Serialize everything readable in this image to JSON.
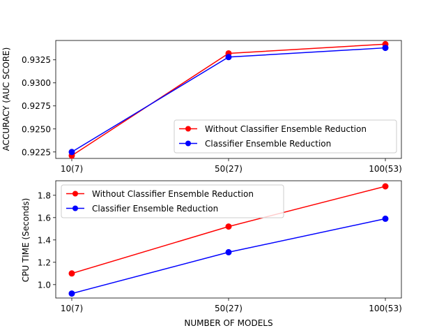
{
  "chart_data": [
    {
      "type": "line",
      "title": "",
      "xlabel": "",
      "ylabel": "ACCURACY (AUC SCORE)",
      "categories": [
        "10(7)",
        "50(27)",
        "100(53)"
      ],
      "series": [
        {
          "name": "Without Classifier Ensemble Reduction",
          "color": "#ff0000",
          "values": [
            0.9221,
            0.9332,
            0.9342
          ]
        },
        {
          "name": "Classifier Ensemble Reduction",
          "color": "#0000ff",
          "values": [
            0.9225,
            0.9328,
            0.9338
          ]
        }
      ],
      "ylim": [
        0.9218,
        0.9346
      ],
      "yticks": [
        0.9225,
        0.925,
        0.9275,
        0.93,
        0.9325
      ],
      "ytick_labels": [
        "0.9225",
        "0.9250",
        "0.9275",
        "0.9300",
        "0.9325"
      ],
      "grid": false,
      "legend_position": "lower-right"
    },
    {
      "type": "line",
      "title": "",
      "xlabel": "NUMBER OF MODELS",
      "ylabel": "CPU TIME (Seconds)",
      "categories": [
        "10(7)",
        "50(27)",
        "100(53)"
      ],
      "series": [
        {
          "name": "Without Classifier Ensemble Reduction",
          "color": "#ff0000",
          "values": [
            1.1,
            1.52,
            1.88
          ]
        },
        {
          "name": "Classifier Ensemble Reduction",
          "color": "#0000ff",
          "values": [
            0.92,
            1.29,
            1.59
          ]
        }
      ],
      "ylim": [
        0.88,
        1.93
      ],
      "yticks": [
        1.0,
        1.2,
        1.4,
        1.6,
        1.8
      ],
      "ytick_labels": [
        "1.0",
        "1.2",
        "1.4",
        "1.6",
        "1.8"
      ],
      "grid": false,
      "legend_position": "upper-left"
    }
  ]
}
